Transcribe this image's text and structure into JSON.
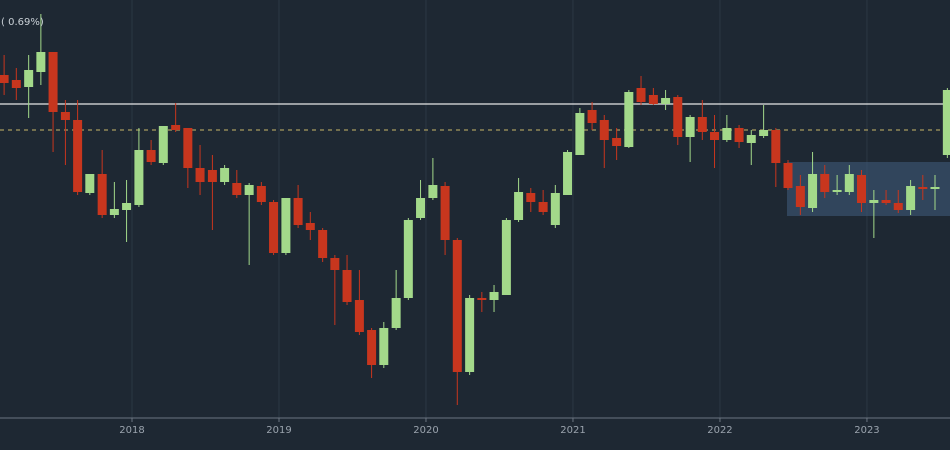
{
  "chart_data": {
    "type": "candlestick",
    "annotation": "( 0.69%)",
    "x": [
      2017.13,
      2017.213,
      2017.297,
      2017.38,
      2017.463,
      2017.547,
      2017.63,
      2017.713,
      2017.797,
      2017.88,
      2017.963,
      2018.047,
      2018.13,
      2018.213,
      2018.297,
      2018.38,
      2018.463,
      2018.547,
      2018.63,
      2018.713,
      2018.797,
      2018.88,
      2018.963,
      2019.047,
      2019.13,
      2019.213,
      2019.297,
      2019.38,
      2019.463,
      2019.547,
      2019.63,
      2019.713,
      2019.797,
      2019.88,
      2019.963,
      2020.047,
      2020.13,
      2020.213,
      2020.297,
      2020.38,
      2020.463,
      2020.547,
      2020.63,
      2020.713,
      2020.797,
      2020.88,
      2020.963,
      2021.047,
      2021.13,
      2021.213,
      2021.297,
      2021.38,
      2021.463,
      2021.547,
      2021.63,
      2021.713,
      2021.797,
      2021.88,
      2021.963,
      2022.047,
      2022.13,
      2022.213,
      2022.297,
      2022.38,
      2022.463,
      2022.547,
      2022.63,
      2022.713,
      2022.797,
      2022.88,
      2022.963,
      2023.047,
      2023.13,
      2023.213,
      2023.297,
      2023.38,
      2023.463,
      2023.547
    ],
    "open": [
      343,
      338,
      331,
      346,
      366,
      306,
      298,
      225,
      244,
      203,
      208,
      213,
      268,
      255,
      293,
      290,
      250,
      248,
      236,
      235,
      223,
      232,
      216,
      165,
      220,
      195,
      188,
      160,
      148,
      118,
      88,
      53,
      90,
      120,
      200,
      220,
      232,
      178,
      46,
      120,
      118,
      123,
      198,
      225,
      216,
      193,
      223,
      263,
      308,
      298,
      280,
      271,
      330,
      323,
      314,
      321,
      281,
      301,
      286,
      278,
      290,
      275,
      282,
      288,
      255,
      232,
      210,
      244,
      226,
      226,
      243,
      215,
      218,
      215,
      208,
      231,
      229,
      263
    ],
    "high": [
      363,
      350,
      363,
      404,
      366,
      318,
      318,
      244,
      268,
      236,
      238,
      290,
      278,
      292,
      315,
      290,
      273,
      263,
      253,
      248,
      235,
      236,
      218,
      220,
      233,
      206,
      190,
      163,
      163,
      148,
      90,
      96,
      148,
      200,
      238,
      260,
      236,
      180,
      123,
      126,
      133,
      200,
      240,
      230,
      228,
      233,
      268,
      310,
      316,
      303,
      290,
      328,
      342,
      330,
      328,
      323,
      303,
      318,
      303,
      303,
      293,
      288,
      313,
      290,
      258,
      243,
      266,
      253,
      243,
      253,
      248,
      228,
      228,
      228,
      238,
      243,
      243,
      330
    ],
    "low": [
      323,
      318,
      300,
      333,
      266,
      253,
      223,
      223,
      200,
      200,
      176,
      211,
      253,
      253,
      286,
      230,
      223,
      188,
      233,
      220,
      153,
      213,
      163,
      163,
      190,
      178,
      156,
      93,
      113,
      83,
      40,
      50,
      88,
      118,
      198,
      218,
      163,
      13,
      43,
      106,
      106,
      123,
      196,
      206,
      203,
      190,
      223,
      263,
      288,
      250,
      258,
      270,
      313,
      313,
      308,
      273,
      256,
      278,
      250,
      276,
      270,
      253,
      280,
      231,
      228,
      203,
      206,
      220,
      223,
      223,
      206,
      180,
      213,
      205,
      203,
      218,
      208,
      260
    ],
    "close": [
      335,
      330,
      348,
      366,
      306,
      298,
      226,
      244,
      203,
      209,
      215,
      268,
      256,
      292,
      288,
      250,
      236,
      236,
      250,
      223,
      233,
      216,
      165,
      220,
      193,
      188,
      160,
      148,
      116,
      86,
      53,
      90,
      120,
      198,
      220,
      233,
      178,
      46,
      120,
      118,
      126,
      198,
      226,
      216,
      206,
      225,
      266,
      305,
      295,
      278,
      272,
      326,
      316,
      314,
      320,
      281,
      301,
      286,
      278,
      290,
      276,
      283,
      288,
      255,
      230,
      211,
      244,
      226,
      228,
      244,
      215,
      218,
      215,
      208,
      232,
      229,
      231,
      328
    ],
    "up_color": "#a3d98a",
    "down_color": "#c8361e",
    "xlim": [
      2017.102,
      2023.565
    ],
    "xticks": [
      2018,
      2019,
      2020,
      2021,
      2022,
      2023
    ],
    "ylim": [
      0,
      418
    ],
    "grid": true,
    "lines": [
      {
        "value": 314,
        "style": "solid",
        "color": "#e6e6e6"
      },
      {
        "value": 288,
        "style": "dashed",
        "color": "#a89a5e"
      }
    ],
    "region": {
      "x": [
        2022.456,
        2023.565
      ],
      "y": [
        202,
        256
      ],
      "color": "#3e5878"
    }
  }
}
